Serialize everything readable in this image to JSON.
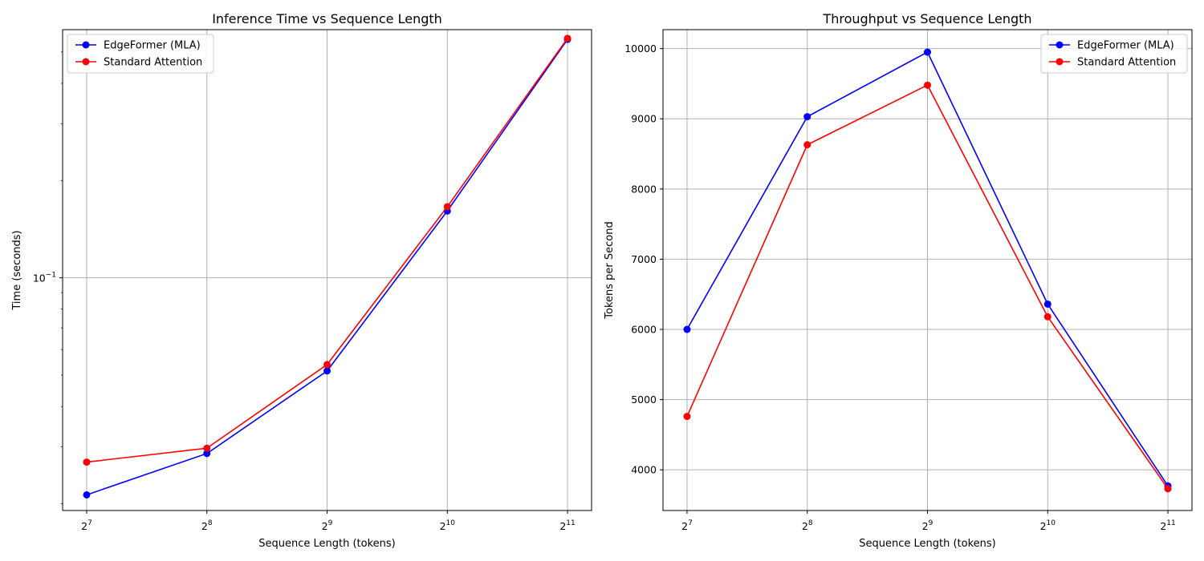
{
  "chart_data": [
    {
      "type": "line",
      "title": "Inference Time vs Sequence Length",
      "xlabel": "Sequence Length (tokens)",
      "ylabel": "Time (seconds)",
      "x": [
        128,
        256,
        512,
        1024,
        2048
      ],
      "xscale": "log2",
      "yscale": "log10",
      "x_tick_labels": [
        {
          "base": "2",
          "exp": "7"
        },
        {
          "base": "2",
          "exp": "8"
        },
        {
          "base": "2",
          "exp": "9"
        },
        {
          "base": "2",
          "exp": "10"
        },
        {
          "base": "2",
          "exp": "11"
        }
      ],
      "y_major_tick_label": {
        "base": "10",
        "exp": "−1",
        "value": 0.1
      },
      "ylim": [
        0.01905,
        0.5863
      ],
      "grid": true,
      "legend_placement": "top-left",
      "series": [
        {
          "name": "EdgeFormer (MLA)",
          "color": "#0000ff",
          "values": [
            0.0213,
            0.0286,
            0.0515,
            0.161,
            0.547
          ]
        },
        {
          "name": "Standard Attention",
          "color": "#ff0000",
          "values": [
            0.0269,
            0.0297,
            0.0539,
            0.166,
            0.551
          ]
        }
      ]
    },
    {
      "type": "line",
      "title": "Throughput vs Sequence Length",
      "xlabel": "Sequence Length (tokens)",
      "ylabel": "Tokens per Second",
      "x": [
        128,
        256,
        512,
        1024,
        2048
      ],
      "xscale": "log2",
      "yscale": "linear",
      "x_tick_labels": [
        {
          "base": "2",
          "exp": "7"
        },
        {
          "base": "2",
          "exp": "8"
        },
        {
          "base": "2",
          "exp": "9"
        },
        {
          "base": "2",
          "exp": "10"
        },
        {
          "base": "2",
          "exp": "11"
        }
      ],
      "y_ticks": [
        4000,
        5000,
        6000,
        7000,
        8000,
        9000,
        10000
      ],
      "ylim": [
        3420,
        10270
      ],
      "grid": true,
      "legend_placement": "top-right",
      "series": [
        {
          "name": "EdgeFormer (MLA)",
          "color": "#0000ff",
          "values": [
            6000,
            9030,
            9950,
            6360,
            3770
          ]
        },
        {
          "name": "Standard Attention",
          "color": "#ff0000",
          "values": [
            4760,
            8630,
            9480,
            6180,
            3730
          ]
        }
      ]
    }
  ]
}
